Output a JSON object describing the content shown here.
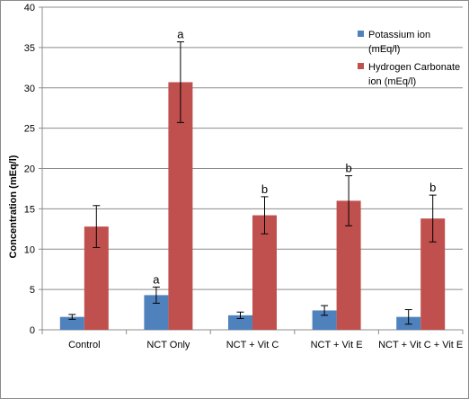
{
  "chart_data": {
    "type": "bar",
    "categories": [
      "Control",
      "NCT Only",
      "NCT + Vit C",
      "NCT + Vit E",
      "NCT + Vit C + Vit E"
    ],
    "series": [
      {
        "name": "Potassium ion (mEq/l)",
        "name_lines": [
          "Potassium ion",
          "(mEq/l)"
        ],
        "color": "#4f81bd",
        "values": [
          1.6,
          4.3,
          1.8,
          2.4,
          1.6
        ],
        "errors": [
          0.3,
          1.0,
          0.4,
          0.6,
          0.9
        ],
        "annotations": [
          "",
          "a",
          "",
          "",
          ""
        ]
      },
      {
        "name": "Hydrogen Carbonate ion (mEq/l)",
        "name_lines": [
          "Hydrogen Carbonate",
          "ion (mEq/l)"
        ],
        "color": "#c0504d",
        "values": [
          12.8,
          30.7,
          14.2,
          16.0,
          13.8
        ],
        "errors": [
          2.6,
          5.0,
          2.3,
          3.1,
          2.9
        ],
        "annotations": [
          "",
          "a",
          "b",
          "b",
          "b"
        ]
      }
    ],
    "title": "",
    "xlabel": "",
    "ylabel": "Concentration (mEq/l)",
    "ylim": [
      0,
      40
    ],
    "yticks": [
      "0",
      "5",
      "10",
      "15",
      "20",
      "25",
      "30",
      "35",
      "40"
    ],
    "grid": true,
    "legend": "right"
  }
}
